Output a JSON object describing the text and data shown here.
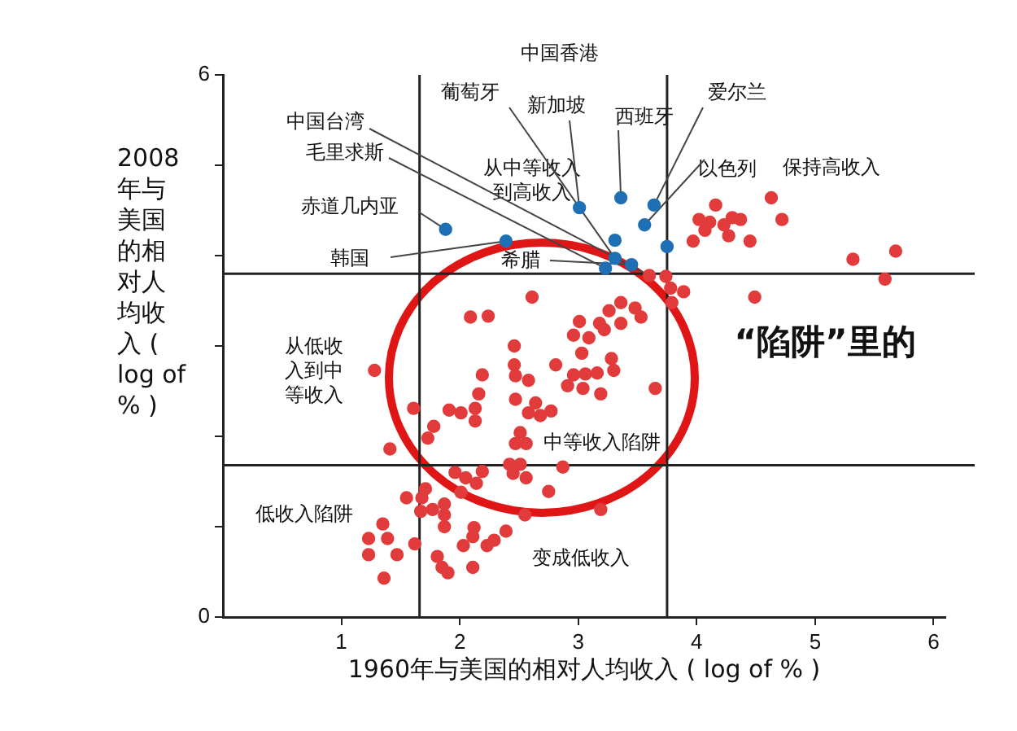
{
  "chart_data": {
    "type": "scatter",
    "xlabel": "1960年与美国的相对人均收入 ( log of % )",
    "ylabel": "2008年与美国的相对人均收入 ( log of % )",
    "xlim": [
      0,
      6.1
    ],
    "ylim": [
      0,
      6
    ],
    "xticks": [
      1,
      2,
      3,
      4,
      5,
      6
    ],
    "yticks": [
      0,
      {
        "value": 1,
        "label": null
      },
      {
        "value": 2,
        "label": null
      },
      {
        "value": 3,
        "label": null
      },
      {
        "value": 4,
        "label": null
      },
      {
        "value": 5,
        "label": null
      },
      6
    ],
    "grid": false,
    "legend": false,
    "marker": "circle",
    "series": [
      {
        "color": "#1f6fb4",
        "x": [
          1.88,
          2.39,
          3.01,
          3.36,
          3.64,
          3.56,
          3.31,
          3.31,
          3.45,
          3.23,
          3.75
        ],
        "values": [
          4.29,
          4.16,
          4.53,
          4.64,
          4.56,
          4.34,
          4.17,
          3.97,
          3.9,
          3.86,
          4.1
        ]
      },
      {
        "color": "#e23b3b",
        "x": [
          2.61,
          2.09,
          2.24,
          3.36,
          3.26,
          3.53,
          3.01,
          3.18,
          3.36,
          2.96,
          3.09,
          3.22,
          2.46,
          3.03,
          3.28,
          2.81,
          2.46,
          2.96,
          3.06,
          3.16,
          3.3,
          1.28,
          2.19,
          2.47,
          2.58,
          2.91,
          3.04,
          3.19,
          3.65,
          2.16,
          2.47,
          2.64,
          2.58,
          2.68,
          2.77,
          1.91,
          2.01,
          2.13,
          2.13,
          1.61,
          1.78,
          1.73,
          1.41,
          2.51,
          2.47,
          2.56,
          2.42,
          2.51,
          2.87,
          1.96,
          2.05,
          2.19,
          2.14,
          2.45,
          2.56,
          2.75,
          1.71,
          1.55,
          1.68,
          2.01,
          1.87,
          1.77,
          1.87,
          1.67,
          2.55,
          3.19,
          1.35,
          1.87,
          2.12,
          2.39,
          1.23,
          1.39,
          2.11,
          2.29,
          1.62,
          2.03,
          2.23,
          1.23,
          1.47,
          1.81,
          1.85,
          1.9,
          2.11,
          1.36,
          3.78,
          3.89,
          3.79,
          3.6,
          3.74,
          3.48,
          4.16,
          4.63,
          4.02,
          4.11,
          4.3,
          4.37,
          4.23,
          4.07,
          4.27,
          4.72,
          3.97,
          4.45,
          5.32,
          5.68,
          5.59,
          4.49
        ],
        "values": [
          3.54,
          3.32,
          3.33,
          3.48,
          3.39,
          3.32,
          3.27,
          3.25,
          3.25,
          3.12,
          3.09,
          3.18,
          3.0,
          2.92,
          2.86,
          2.79,
          2.79,
          2.68,
          2.69,
          2.7,
          2.73,
          2.73,
          2.68,
          2.67,
          2.62,
          2.56,
          2.53,
          2.47,
          2.53,
          2.47,
          2.41,
          2.37,
          2.26,
          2.23,
          2.28,
          2.29,
          2.26,
          2.31,
          2.17,
          2.31,
          2.11,
          1.98,
          1.86,
          2.04,
          1.92,
          1.92,
          1.69,
          1.69,
          1.66,
          1.6,
          1.54,
          1.61,
          1.48,
          1.59,
          1.54,
          1.39,
          1.42,
          1.32,
          1.32,
          1.38,
          1.25,
          1.19,
          1.13,
          1.17,
          1.13,
          1.19,
          1.03,
          1.0,
          0.99,
          0.95,
          0.87,
          0.87,
          0.89,
          0.85,
          0.81,
          0.79,
          0.79,
          0.69,
          0.69,
          0.67,
          0.55,
          0.49,
          0.55,
          0.43,
          3.64,
          3.6,
          3.48,
          3.78,
          3.77,
          3.42,
          4.56,
          4.64,
          4.4,
          4.37,
          4.42,
          4.4,
          4.34,
          4.28,
          4.22,
          4.4,
          4.16,
          4.16,
          3.96,
          4.05,
          3.74,
          3.54
        ]
      }
    ],
    "ref_lines": [
      {
        "axis": "x",
        "value": 1.66,
        "color": "#222222"
      },
      {
        "axis": "x",
        "value": 3.75,
        "color": "#222222"
      },
      {
        "axis": "y",
        "value": 3.8,
        "color": "#222222"
      },
      {
        "axis": "y",
        "value": 1.68,
        "color": "#222222"
      }
    ],
    "annotations": [
      "中国香港",
      {
        "text": "葡萄牙",
        "x": 3.31,
        "y": 3.97
      },
      {
        "text": "新加坡",
        "x": 3.01,
        "y": 4.53
      },
      {
        "text": "西班牙",
        "x": 3.36,
        "y": 4.64
      },
      {
        "text": "爱尔兰",
        "x": 3.64,
        "y": 4.56
      },
      {
        "text": "中国台湾",
        "x": 3.6,
        "y": 3.78
      },
      {
        "text": "毛里求斯",
        "x": 3.23,
        "y": 3.86
      },
      "从中等收入到高收入",
      {
        "text": "以色列",
        "x": 3.56,
        "y": 4.34
      },
      "保持高收入",
      {
        "text": "赤道几内亚",
        "x": 1.88,
        "y": 4.29
      },
      {
        "text": "韩国",
        "x": 2.39,
        "y": 4.16
      },
      {
        "text": "希腊",
        "x": 3.45,
        "y": 3.9
      },
      "从低收入到中等收入",
      "中等收入陷阱",
      "低收入陷阱",
      "变成低收入",
      "“陷阱”里的"
    ]
  }
}
